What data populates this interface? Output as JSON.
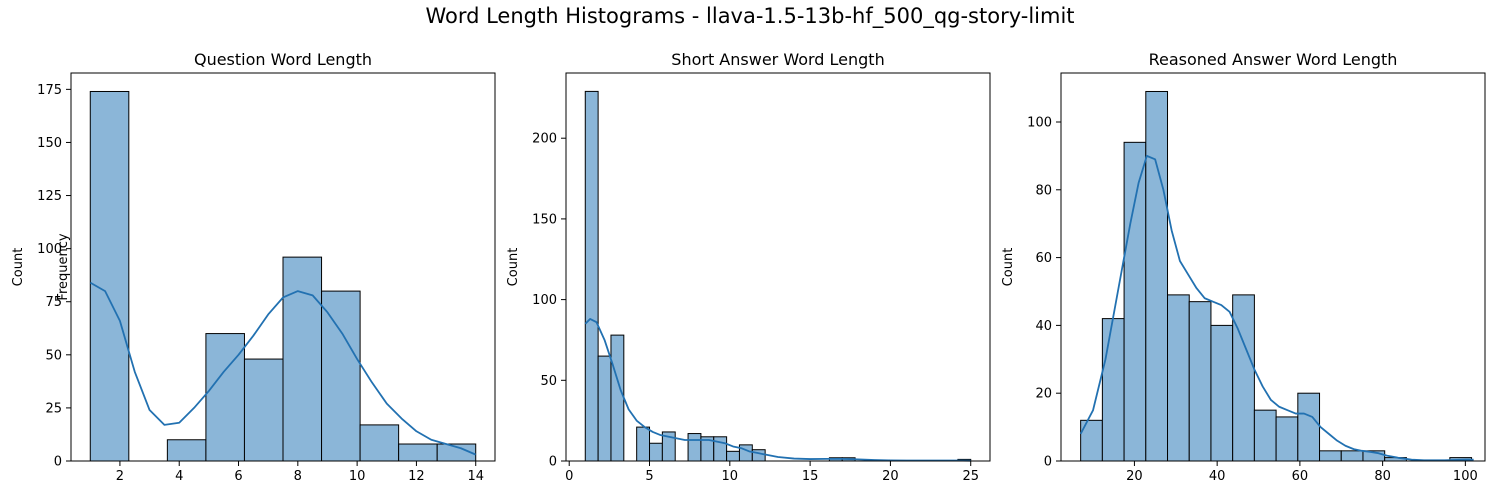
{
  "suptitle": "Word Length Histograms - llava-1.5-13b-hf_500_qg-story-limit",
  "colors": {
    "bar_fill": "#8bb6d8",
    "bar_edge": "#000000",
    "kde_line": "#2271b1"
  },
  "chart_data": [
    {
      "type": "bar",
      "title": "Question Word Length",
      "ylabel": "Count",
      "ylabel_overlay": "Frequency",
      "xlim": [
        0.35,
        14.65
      ],
      "ylim": [
        0,
        182.7
      ],
      "xticks": [
        2,
        4,
        6,
        8,
        10,
        12,
        14
      ],
      "yticks": [
        0,
        25,
        50,
        75,
        100,
        125,
        150,
        175
      ],
      "bins": [
        [
          1.0,
          2.3,
          174
        ],
        [
          2.3,
          3.6,
          0
        ],
        [
          3.6,
          4.9,
          10
        ],
        [
          4.9,
          6.2,
          60
        ],
        [
          6.2,
          7.5,
          48
        ],
        [
          7.5,
          8.8,
          96
        ],
        [
          8.8,
          10.1,
          80
        ],
        [
          10.1,
          11.4,
          17
        ],
        [
          11.4,
          12.7,
          8
        ],
        [
          12.7,
          14.0,
          8
        ]
      ],
      "kde": [
        [
          1.0,
          84
        ],
        [
          1.5,
          80
        ],
        [
          2.0,
          66
        ],
        [
          2.5,
          42
        ],
        [
          3.0,
          24
        ],
        [
          3.5,
          17
        ],
        [
          4.0,
          18
        ],
        [
          4.5,
          25
        ],
        [
          5.0,
          33
        ],
        [
          5.5,
          42
        ],
        [
          6.0,
          50
        ],
        [
          6.5,
          59
        ],
        [
          7.0,
          69
        ],
        [
          7.5,
          77
        ],
        [
          8.0,
          80
        ],
        [
          8.5,
          78
        ],
        [
          9.0,
          70
        ],
        [
          9.5,
          60
        ],
        [
          10.0,
          48
        ],
        [
          10.5,
          37
        ],
        [
          11.0,
          27
        ],
        [
          11.5,
          20
        ],
        [
          12.0,
          14
        ],
        [
          12.5,
          10
        ],
        [
          13.0,
          8
        ],
        [
          13.5,
          6
        ],
        [
          14.0,
          3
        ]
      ]
    },
    {
      "type": "bar",
      "title": "Short Answer Word Length",
      "ylabel": "Count",
      "xlim": [
        -0.2,
        26.2
      ],
      "ylim": [
        0,
        240.4
      ],
      "xticks": [
        0,
        5,
        10,
        15,
        20,
        25
      ],
      "yticks": [
        0,
        50,
        100,
        150,
        200
      ],
      "bins": [
        [
          1.0,
          1.8,
          229
        ],
        [
          1.8,
          2.6,
          65
        ],
        [
          2.6,
          3.4,
          78
        ],
        [
          3.4,
          4.2,
          0
        ],
        [
          4.2,
          5.0,
          21
        ],
        [
          5.0,
          5.8,
          11
        ],
        [
          5.8,
          6.6,
          18
        ],
        [
          6.6,
          7.4,
          0
        ],
        [
          7.4,
          8.2,
          17
        ],
        [
          8.2,
          9.0,
          15
        ],
        [
          9.0,
          9.8,
          15
        ],
        [
          9.8,
          10.6,
          6
        ],
        [
          10.6,
          11.4,
          10
        ],
        [
          11.4,
          12.2,
          7
        ],
        [
          12.2,
          13.0,
          0
        ],
        [
          13.0,
          13.8,
          0
        ],
        [
          13.8,
          14.6,
          0
        ],
        [
          14.6,
          15.4,
          0
        ],
        [
          15.4,
          16.2,
          0
        ],
        [
          16.2,
          17.0,
          2
        ],
        [
          17.0,
          17.8,
          2
        ],
        [
          17.8,
          18.6,
          0
        ],
        [
          18.6,
          19.4,
          0
        ],
        [
          19.4,
          20.2,
          0
        ],
        [
          20.2,
          21.0,
          0
        ],
        [
          21.0,
          21.8,
          0
        ],
        [
          21.8,
          22.6,
          0
        ],
        [
          22.6,
          23.4,
          0
        ],
        [
          23.4,
          24.2,
          0
        ],
        [
          24.2,
          25.0,
          1
        ]
      ],
      "kde": [
        [
          1.0,
          85
        ],
        [
          1.3,
          88
        ],
        [
          1.7,
          86
        ],
        [
          2.2,
          75
        ],
        [
          2.7,
          60
        ],
        [
          3.2,
          44
        ],
        [
          3.7,
          32
        ],
        [
          4.2,
          25
        ],
        [
          4.7,
          21
        ],
        [
          5.2,
          18
        ],
        [
          5.7,
          16
        ],
        [
          6.2,
          15
        ],
        [
          6.7,
          14
        ],
        [
          7.2,
          13
        ],
        [
          7.7,
          13
        ],
        [
          8.2,
          13
        ],
        [
          8.7,
          13
        ],
        [
          9.2,
          12
        ],
        [
          9.7,
          11
        ],
        [
          10.2,
          9
        ],
        [
          10.7,
          8
        ],
        [
          11.2,
          6
        ],
        [
          11.7,
          5
        ],
        [
          12.2,
          4
        ],
        [
          13,
          2.5
        ],
        [
          14,
          1.5
        ],
        [
          15,
          1.2
        ],
        [
          16,
          1.3
        ],
        [
          17,
          1.3
        ],
        [
          18,
          1.0
        ],
        [
          19,
          0.6
        ],
        [
          20,
          0.4
        ],
        [
          21,
          0.3
        ],
        [
          22,
          0.3
        ],
        [
          23,
          0.3
        ],
        [
          24,
          0.3
        ],
        [
          25,
          0.2
        ]
      ]
    },
    {
      "type": "bar",
      "title": "Reasoned Answer Word Length",
      "ylabel": "Count",
      "xlim": [
        2.25,
        104.75
      ],
      "ylim": [
        0,
        114.45
      ],
      "xticks": [
        20,
        40,
        60,
        80,
        100
      ],
      "yticks": [
        0,
        20,
        40,
        60,
        80,
        100
      ],
      "bins": [
        [
          7.0,
          12.25,
          12
        ],
        [
          12.25,
          17.5,
          42
        ],
        [
          17.5,
          22.75,
          94
        ],
        [
          22.75,
          28.0,
          109
        ],
        [
          28.0,
          33.25,
          49
        ],
        [
          33.25,
          38.5,
          47
        ],
        [
          38.5,
          43.75,
          40
        ],
        [
          43.75,
          49.0,
          49
        ],
        [
          49.0,
          54.25,
          15
        ],
        [
          54.25,
          59.5,
          13
        ],
        [
          59.5,
          64.75,
          20
        ],
        [
          64.75,
          70.0,
          3
        ],
        [
          70.0,
          75.25,
          3
        ],
        [
          75.25,
          80.5,
          3
        ],
        [
          80.5,
          85.75,
          1
        ],
        [
          85.75,
          91.0,
          0
        ],
        [
          91.0,
          96.25,
          0
        ],
        [
          96.25,
          101.5,
          1
        ]
      ],
      "kde": [
        [
          7,
          8
        ],
        [
          10,
          15
        ],
        [
          13,
          30
        ],
        [
          16,
          50
        ],
        [
          19,
          70
        ],
        [
          21,
          82
        ],
        [
          23,
          90
        ],
        [
          25,
          89
        ],
        [
          27,
          80
        ],
        [
          29,
          68
        ],
        [
          31,
          59
        ],
        [
          33,
          55
        ],
        [
          35,
          51
        ],
        [
          37,
          48
        ],
        [
          39,
          47
        ],
        [
          41,
          46
        ],
        [
          43,
          44
        ],
        [
          45,
          39
        ],
        [
          47,
          33
        ],
        [
          49,
          27
        ],
        [
          51,
          22
        ],
        [
          53,
          18
        ],
        [
          55,
          16
        ],
        [
          57,
          15
        ],
        [
          59,
          14
        ],
        [
          61,
          14
        ],
        [
          63,
          13
        ],
        [
          65,
          10
        ],
        [
          67,
          8
        ],
        [
          69,
          6
        ],
        [
          71,
          4.5
        ],
        [
          73,
          3.5
        ],
        [
          75,
          3
        ],
        [
          77,
          2.7
        ],
        [
          79,
          2.3
        ],
        [
          81,
          1.6
        ],
        [
          84,
          0.9
        ],
        [
          87,
          0.4
        ],
        [
          90,
          0.2
        ],
        [
          95,
          0.2
        ],
        [
          100,
          0.4
        ],
        [
          102,
          0.4
        ]
      ]
    }
  ]
}
